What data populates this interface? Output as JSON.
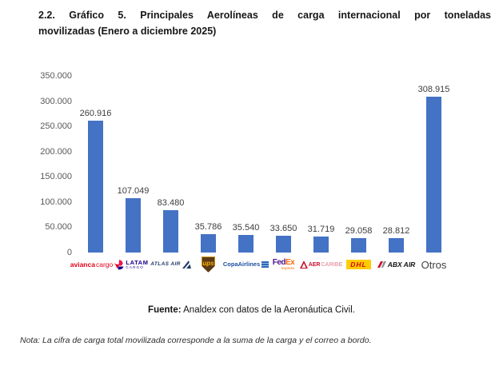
{
  "title": {
    "line1": "2.2. Gráfico 5. Principales Aerolíneas de carga internacional por toneladas",
    "line2": "movilizadas (Enero a diciembre 2025)"
  },
  "chart_data": {
    "type": "bar",
    "title": "Principales Aerolíneas de carga internacional por toneladas movilizadas (Enero a diciembre 2025)",
    "xlabel": "",
    "ylabel": "",
    "ylim": [
      0,
      350000
    ],
    "grid": false,
    "legend": "none",
    "bar_color": "#4472C4",
    "y_ticks": [
      {
        "value": 0,
        "label": "0"
      },
      {
        "value": 50000,
        "label": "50.000"
      },
      {
        "value": 100000,
        "label": "100.000"
      },
      {
        "value": 150000,
        "label": "150.000"
      },
      {
        "value": 200000,
        "label": "200.000"
      },
      {
        "value": 250000,
        "label": "250.000"
      },
      {
        "value": 300000,
        "label": "300.000"
      },
      {
        "value": 350000,
        "label": "350.000"
      }
    ],
    "categories": [
      {
        "name": "Avianca Cargo",
        "value": 260916,
        "value_label": "260.916",
        "logo": "avianca-cargo",
        "logo_text": [
          "avianca",
          "cargo"
        ]
      },
      {
        "name": "LATAM Cargo",
        "value": 107049,
        "value_label": "107.049",
        "logo": "latam-cargo",
        "logo_text": [
          "LATAM",
          "CARGO"
        ]
      },
      {
        "name": "Atlas Air",
        "value": 83480,
        "value_label": "83.480",
        "logo": "atlas-air",
        "logo_text": [
          "ATLAS AIR"
        ]
      },
      {
        "name": "UPS",
        "value": 35786,
        "value_label": "35.786",
        "logo": "ups",
        "logo_text": [
          "ups"
        ]
      },
      {
        "name": "Copa Airlines",
        "value": 35540,
        "value_label": "35.540",
        "logo": "copa-airlines",
        "logo_text": [
          "CopaAirlines"
        ]
      },
      {
        "name": "FedEx Express",
        "value": 33650,
        "value_label": "33.650",
        "logo": "fedex",
        "logo_text": [
          "Fed",
          "Ex",
          "Express"
        ]
      },
      {
        "name": "AerCaribe",
        "value": 31719,
        "value_label": "31.719",
        "logo": "aercaribe",
        "logo_text": [
          "AER",
          "CARIBE"
        ]
      },
      {
        "name": "DHL",
        "value": 29058,
        "value_label": "29.058",
        "logo": "dhl",
        "logo_text": [
          "DHL"
        ]
      },
      {
        "name": "ABX Air",
        "value": 28812,
        "value_label": "28.812",
        "logo": "abx-air",
        "logo_text": [
          "ABX AIR"
        ]
      },
      {
        "name": "Otros",
        "value": 308915,
        "value_label": "308.915",
        "logo": "text",
        "logo_text": [
          "Otros"
        ]
      }
    ]
  },
  "fuente": {
    "label": "Fuente:",
    "text": "Analdex con datos de la Aeronáutica Civil."
  },
  "nota": "Nota: La cifra de carga total movilizada corresponde a la suma de la carga y el correo a bordo."
}
